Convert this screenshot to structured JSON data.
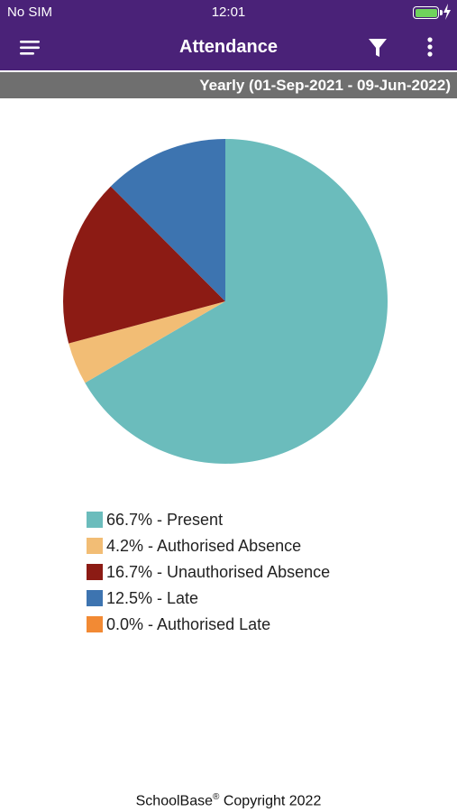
{
  "status_bar": {
    "carrier": "No SIM",
    "time": "12:01"
  },
  "header": {
    "title": "Attendance",
    "menu_icon": "hamburger-menu-icon",
    "filter_icon": "filter-icon",
    "more_icon": "more-vertical-icon"
  },
  "period": {
    "label": "Yearly (01-Sep-2021 - 09-Jun-2022)"
  },
  "chart_data": {
    "type": "pie",
    "slices": [
      {
        "label": "66.7% - Present",
        "value": 66.7,
        "color": "#6bbcbc"
      },
      {
        "label": "4.2% - Authorised Absence",
        "value": 4.2,
        "color": "#f2bd75"
      },
      {
        "label": "16.7% - Unauthorised Absence",
        "value": 16.7,
        "color": "#8c1b14"
      },
      {
        "label": "12.5% - Late",
        "value": 12.5,
        "color": "#3d74b0"
      },
      {
        "label": "0.0% - Authorised Late",
        "value": 0.0,
        "color": "#f28a34"
      }
    ],
    "legend": "bottom"
  },
  "footer": {
    "brand": "SchoolBase",
    "registered": "®",
    "copyright": " Copyright 2022"
  },
  "colors": {
    "header_bg": "#4a2278",
    "period_bar_bg": "#6f6f6f"
  }
}
